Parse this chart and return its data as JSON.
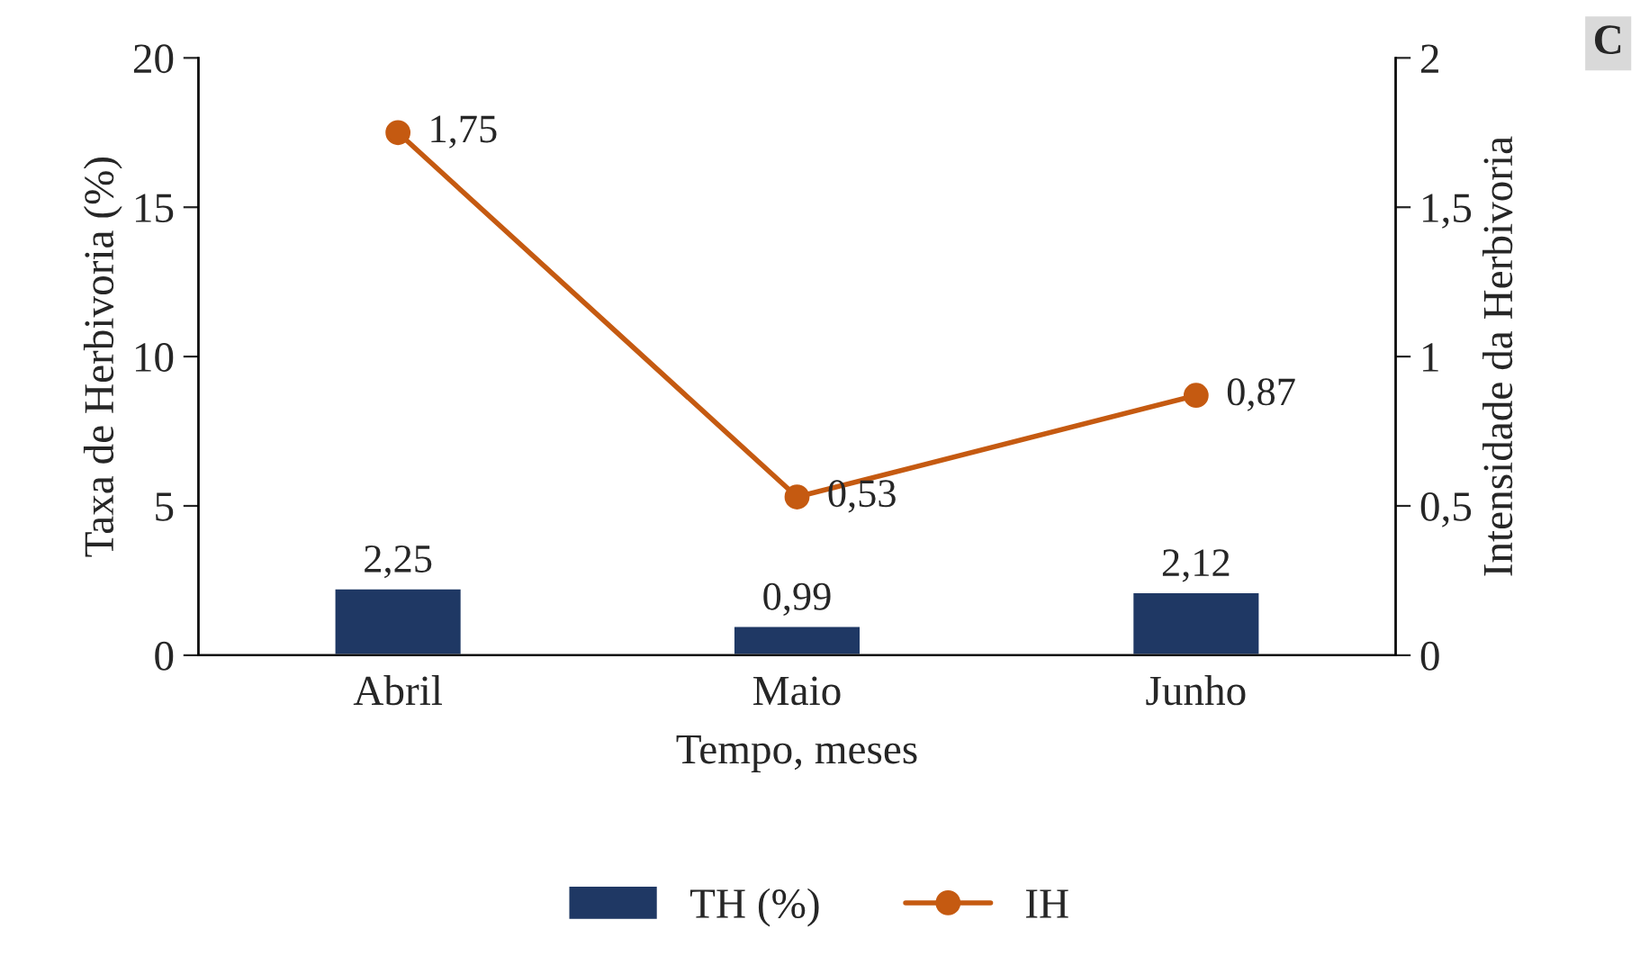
{
  "chart_data": {
    "type": "bar",
    "xlabel": "Tempo, meses",
    "ylabel": "Taxa de Herbivoria (%)",
    "y2label": "Intensidade da Herbivoria",
    "categories": [
      "Abril",
      "Maio",
      "Junho"
    ],
    "series": [
      {
        "name": "TH (%)",
        "color": "#1f3864",
        "values": [
          2.25,
          0.99,
          2.12
        ],
        "value_labels": [
          "2,25",
          "0,99",
          "2,12"
        ]
      },
      {
        "name": "IH",
        "type": "line",
        "axis": "y2",
        "color": "#c55a11",
        "values": [
          1.75,
          0.53,
          0.87
        ],
        "value_labels": [
          "1,75",
          "0,53",
          "0,87"
        ],
        "marker": "circle",
        "line_style": "solid"
      }
    ],
    "ylim": [
      0,
      20
    ],
    "yticks": [
      0,
      5,
      10,
      15,
      20
    ],
    "y2lim": [
      0,
      2
    ],
    "y2ticks": [
      0,
      {
        "value": 0.5,
        "label": "0,5"
      },
      1,
      {
        "value": 1.5,
        "label": "1,5"
      },
      2
    ],
    "legend": "bottom",
    "grid": false,
    "annotations": [
      "C"
    ]
  }
}
